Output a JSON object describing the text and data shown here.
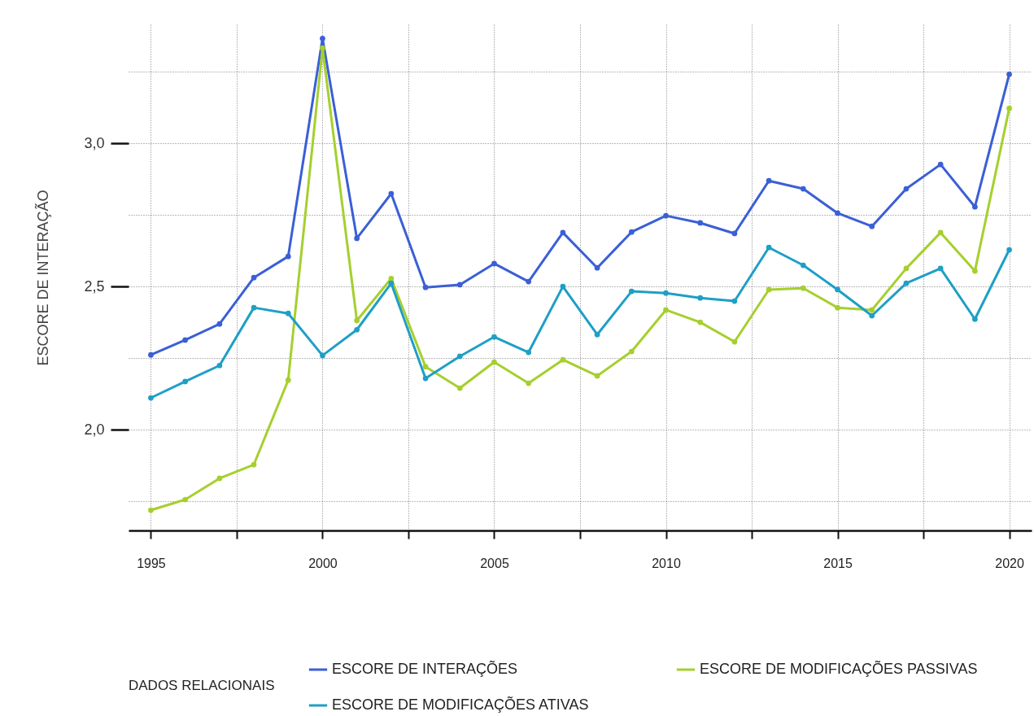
{
  "chart_data": {
    "type": "line",
    "ylabel": "ESCORE DE INTERAÇÃO",
    "legend_title": "DADOS RELACIONAIS",
    "x": [
      1995,
      1996,
      1997,
      1998,
      1999,
      2000,
      2001,
      2002,
      2003,
      2004,
      2005,
      2006,
      2007,
      2008,
      2009,
      2010,
      2011,
      2012,
      2013,
      2014,
      2015,
      2016,
      2017,
      2018,
      2019,
      2020
    ],
    "series": [
      {
        "name": "ESCORE DE INTERAÇÕES",
        "color": "#3a5fd6",
        "values": [
          2.261,
          2.313,
          2.369,
          2.531,
          2.605,
          3.366,
          2.668,
          2.824,
          2.497,
          2.506,
          2.58,
          2.517,
          2.688,
          2.565,
          2.69,
          2.747,
          2.722,
          2.685,
          2.869,
          2.841,
          2.756,
          2.71,
          2.841,
          2.926,
          2.778,
          3.241
        ]
      },
      {
        "name": "ESCORE DE MODIFICAÇÕES PASSIVAS",
        "color": "#a6cf2e",
        "values": [
          1.719,
          1.756,
          1.83,
          1.878,
          2.173,
          3.332,
          2.381,
          2.528,
          2.22,
          2.145,
          2.236,
          2.162,
          2.244,
          2.188,
          2.273,
          2.418,
          2.375,
          2.307,
          2.489,
          2.494,
          2.426,
          2.418,
          2.563,
          2.688,
          2.554,
          3.122
        ]
      },
      {
        "name": "ESCORE DE MODIFICAÇÕES ATIVAS",
        "color": "#1e9fc6",
        "values": [
          2.111,
          2.168,
          2.224,
          2.426,
          2.406,
          2.259,
          2.349,
          2.511,
          2.179,
          2.256,
          2.324,
          2.27,
          2.5,
          2.332,
          2.483,
          2.477,
          2.46,
          2.449,
          2.636,
          2.574,
          2.489,
          2.398,
          2.511,
          2.563,
          2.386,
          2.628
        ]
      }
    ],
    "xlim": [
      1994.35,
      2020.65
    ],
    "ylim": [
      1.648,
      3.415
    ],
    "xticks": [
      1995,
      {
        "value": 1997.5,
        "label": null
      },
      2000,
      {
        "value": 2002.5,
        "label": null
      },
      2005,
      {
        "value": 2007.5,
        "label": null
      },
      2010,
      {
        "value": 2012.5,
        "label": null
      },
      2015,
      {
        "value": 2017.5,
        "label": null
      },
      2020
    ],
    "yticks": [
      {
        "value": 1.75,
        "label": null
      },
      {
        "value": 2,
        "label": "2,0"
      },
      {
        "value": 2.25,
        "label": null
      },
      {
        "value": 2.5,
        "label": "2,5"
      },
      {
        "value": 2.75,
        "label": null
      },
      {
        "value": 3,
        "label": "3,0"
      },
      {
        "value": 3.25,
        "label": null
      }
    ],
    "grid": true,
    "legend": "bottom",
    "marker": "circle",
    "line_style": "solid"
  }
}
